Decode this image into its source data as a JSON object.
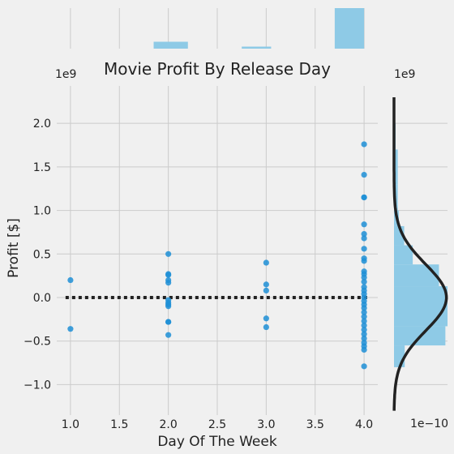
{
  "chart_data": {
    "type": "scatter",
    "title": "Movie Profit By Release Day",
    "xlabel": "Day Of The Week",
    "ylabel": "Profit [$]",
    "y_offset_label": "1e9",
    "right_offset_label": "1e9",
    "right_x_offset_label": "1e−10",
    "xlim": [
      0.86,
      4.14
    ],
    "ylim": [
      -1.35,
      2.43
    ],
    "xticks": [
      1.0,
      1.5,
      2.0,
      2.5,
      3.0,
      3.5,
      4.0
    ],
    "xtick_labels": [
      "1.0",
      "1.5",
      "2.0",
      "2.5",
      "3.0",
      "3.5",
      "4.0"
    ],
    "yticks": [
      -1.0,
      -0.5,
      0.0,
      0.5,
      1.0,
      1.5,
      2.0
    ],
    "ytick_labels": [
      "−1.0",
      "−0.5",
      "0.0",
      "0.5",
      "1.0",
      "1.5",
      "2.0"
    ],
    "regression_line": {
      "slope": 0,
      "intercept": 0.0,
      "style": "dotted"
    },
    "grid": true,
    "colors": {
      "points": "#1f8fd6",
      "hist": "#8ecae6",
      "kde": "#222222",
      "background": "#f0f0f0",
      "grid": "#cbcbcb"
    },
    "points": [
      {
        "x": 1.0,
        "y": 0.2
      },
      {
        "x": 1.0,
        "y": -0.36
      },
      {
        "x": 2.0,
        "y": 0.5
      },
      {
        "x": 2.0,
        "y": 0.27
      },
      {
        "x": 2.0,
        "y": 0.26
      },
      {
        "x": 2.0,
        "y": 0.2
      },
      {
        "x": 2.0,
        "y": 0.17
      },
      {
        "x": 2.0,
        "y": -0.03
      },
      {
        "x": 2.0,
        "y": -0.06
      },
      {
        "x": 2.0,
        "y": -0.08
      },
      {
        "x": 2.0,
        "y": -0.1
      },
      {
        "x": 2.0,
        "y": -0.28
      },
      {
        "x": 2.0,
        "y": -0.28
      },
      {
        "x": 2.0,
        "y": -0.43
      },
      {
        "x": 3.0,
        "y": 0.4
      },
      {
        "x": 3.0,
        "y": 0.15
      },
      {
        "x": 3.0,
        "y": 0.08
      },
      {
        "x": 3.0,
        "y": -0.24
      },
      {
        "x": 3.0,
        "y": -0.34
      },
      {
        "x": 4.0,
        "y": 1.76
      },
      {
        "x": 4.0,
        "y": 1.41
      },
      {
        "x": 4.0,
        "y": 1.15
      },
      {
        "x": 4.0,
        "y": 1.15
      },
      {
        "x": 4.0,
        "y": 0.84
      },
      {
        "x": 4.0,
        "y": 0.73
      },
      {
        "x": 4.0,
        "y": 0.68
      },
      {
        "x": 4.0,
        "y": 0.56
      },
      {
        "x": 4.0,
        "y": 0.45
      },
      {
        "x": 4.0,
        "y": 0.42
      },
      {
        "x": 4.0,
        "y": 0.3
      },
      {
        "x": 4.0,
        "y": 0.27
      },
      {
        "x": 4.0,
        "y": 0.23
      },
      {
        "x": 4.0,
        "y": 0.18
      },
      {
        "x": 4.0,
        "y": 0.12
      },
      {
        "x": 4.0,
        "y": 0.08
      },
      {
        "x": 4.0,
        "y": 0.04
      },
      {
        "x": 4.0,
        "y": 0.0
      },
      {
        "x": 4.0,
        "y": -0.04
      },
      {
        "x": 4.0,
        "y": -0.08
      },
      {
        "x": 4.0,
        "y": -0.12
      },
      {
        "x": 4.0,
        "y": -0.17
      },
      {
        "x": 4.0,
        "y": -0.22
      },
      {
        "x": 4.0,
        "y": -0.27
      },
      {
        "x": 4.0,
        "y": -0.32
      },
      {
        "x": 4.0,
        "y": -0.37
      },
      {
        "x": 4.0,
        "y": -0.42
      },
      {
        "x": 4.0,
        "y": -0.47
      },
      {
        "x": 4.0,
        "y": -0.52
      },
      {
        "x": 4.0,
        "y": -0.56
      },
      {
        "x": 4.0,
        "y": -0.6
      },
      {
        "x": 4.0,
        "y": -0.79
      }
    ],
    "x_marginal_hist": [
      {
        "x0": 1.85,
        "x1": 2.2,
        "density": 0.17
      },
      {
        "x0": 2.75,
        "x1": 3.05,
        "density": 0.05
      },
      {
        "x0": 3.7,
        "x1": 4.0,
        "density": 1.0
      }
    ],
    "y_marginal_hist": [
      {
        "y0": 2.0,
        "y1": 2.3,
        "density": 0.0
      },
      {
        "y0": 1.7,
        "y1": 2.0,
        "density": 0.03
      },
      {
        "y0": 1.3,
        "y1": 1.7,
        "density": 0.07
      },
      {
        "y0": 1.0,
        "y1": 1.3,
        "density": 0.07
      },
      {
        "y0": 0.82,
        "y1": 1.0,
        "density": 0.09
      },
      {
        "y0": 0.6,
        "y1": 0.82,
        "density": 0.19
      },
      {
        "y0": 0.38,
        "y1": 0.6,
        "density": 0.35
      },
      {
        "y0": 0.13,
        "y1": 0.38,
        "density": 0.84
      },
      {
        "y0": -0.33,
        "y1": 0.13,
        "density": 1.0
      },
      {
        "y0": -0.55,
        "y1": -0.33,
        "density": 0.96
      },
      {
        "y0": -0.8,
        "y1": -0.55,
        "density": 0.2
      }
    ],
    "y_kde": {
      "mean": 0.0,
      "sd": 0.38,
      "peak": 0.98
    }
  }
}
